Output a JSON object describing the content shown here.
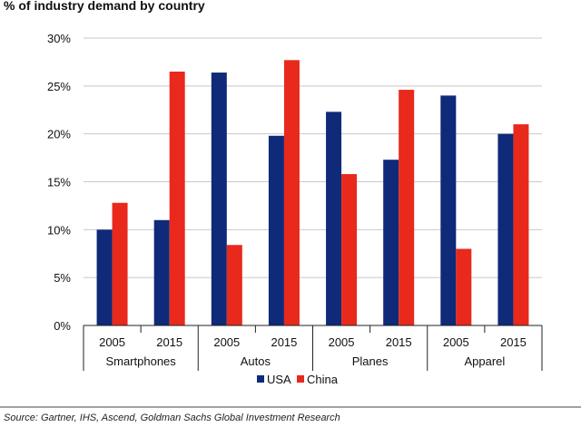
{
  "chart_data": {
    "type": "bar",
    "title": "% of industry demand by country",
    "xlabel": "",
    "ylabel": "",
    "ylim": [
      0,
      30
    ],
    "yticks": [
      "0%",
      "5%",
      "10%",
      "15%",
      "20%",
      "25%",
      "30%"
    ],
    "groups": [
      {
        "name": "Smartphones",
        "years": [
          "2005",
          "2015"
        ]
      },
      {
        "name": "Autos",
        "years": [
          "2005",
          "2015"
        ]
      },
      {
        "name": "Planes",
        "years": [
          "2005",
          "2015"
        ]
      },
      {
        "name": "Apparel",
        "years": [
          "2005",
          "2015"
        ]
      }
    ],
    "categories": [
      "Smartphones 2005",
      "Smartphones 2015",
      "Autos 2005",
      "Autos 2015",
      "Planes 2005",
      "Planes 2015",
      "Apparel 2005",
      "Apparel 2015"
    ],
    "series": [
      {
        "name": "USA",
        "color": "#0e2a78",
        "values": [
          10.0,
          11.0,
          26.4,
          19.8,
          22.3,
          17.3,
          24.0,
          20.0
        ]
      },
      {
        "name": "China",
        "color": "#e8291c",
        "values": [
          12.8,
          26.5,
          8.4,
          27.7,
          15.8,
          24.6,
          8.0,
          21.0
        ]
      }
    ],
    "legend_position": "bottom-center",
    "grid": true,
    "source": "Source: Gartner, IHS, Ascend, Goldman Sachs Global Investment Research"
  }
}
